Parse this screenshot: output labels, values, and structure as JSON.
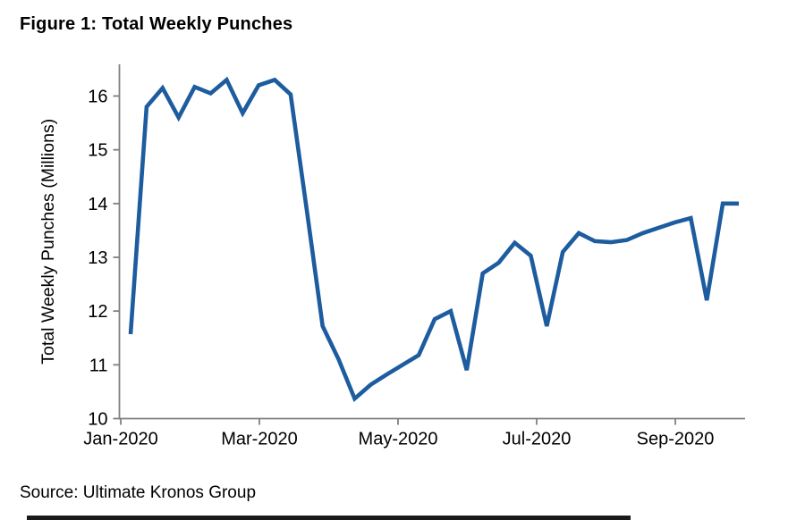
{
  "figure": {
    "title": "Figure 1: Total Weekly Punches",
    "source": "Source: Ultimate Kronos Group"
  },
  "chart_data": {
    "type": "line",
    "title": "Figure 1: Total Weekly Punches",
    "xlabel": "",
    "ylabel": "Total Weekly Punches (Millions)",
    "ylim": [
      10,
      16.6
    ],
    "y_ticks": [
      10,
      11,
      12,
      13,
      14,
      15,
      16
    ],
    "x_tick_labels": [
      "Jan-2020",
      "Mar-2020",
      "May-2020",
      "Jul-2020",
      "Sep-2020"
    ],
    "x_tick_month_offsets": [
      0,
      2,
      4,
      6,
      8
    ],
    "x_cadence": "weekly",
    "x_range_label": "Jan-2020 to late Sep-2020",
    "grid": false,
    "legend_position": "none",
    "series": [
      {
        "name": "Total Weekly Punches (Millions)",
        "color": "#1d5c9e",
        "values": [
          11.57,
          15.8,
          16.15,
          15.6,
          16.17,
          16.05,
          16.3,
          15.68,
          16.2,
          16.3,
          16.03,
          13.9,
          11.72,
          11.1,
          10.37,
          10.63,
          10.82,
          11.0,
          11.18,
          11.85,
          12.0,
          10.9,
          12.7,
          12.9,
          13.27,
          13.03,
          11.72,
          13.1,
          13.45,
          13.3,
          13.28,
          13.32,
          13.45,
          13.55,
          13.65,
          13.73,
          12.2,
          14.0,
          14.0
        ]
      }
    ],
    "axis_color": "#7f7f7f"
  }
}
